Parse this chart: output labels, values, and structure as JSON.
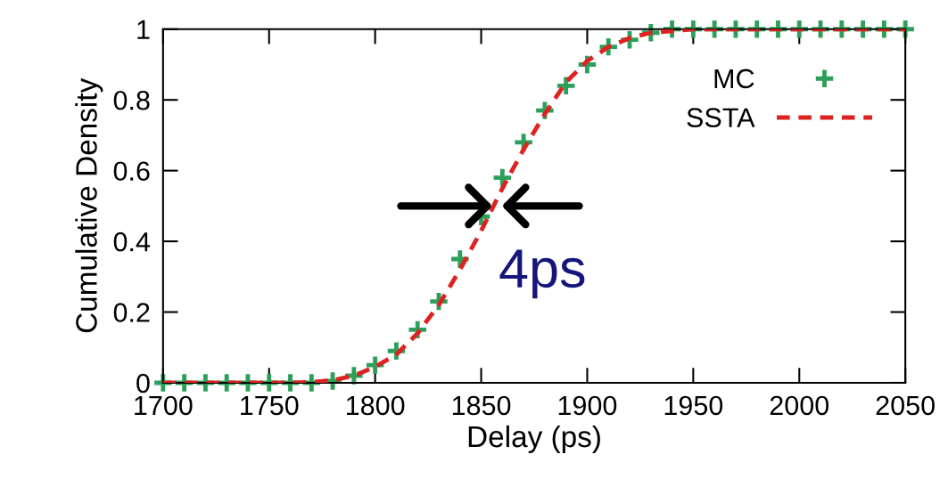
{
  "chart_data": {
    "type": "line",
    "xlabel": "Delay (ps)",
    "ylabel": "Cumulative Density",
    "x": [
      1700,
      1710,
      1720,
      1730,
      1740,
      1750,
      1760,
      1770,
      1780,
      1790,
      1800,
      1810,
      1820,
      1830,
      1840,
      1850,
      1860,
      1870,
      1880,
      1890,
      1900,
      1910,
      1920,
      1930,
      1940,
      1950,
      1960,
      1970,
      1980,
      1990,
      2000,
      2010,
      2020,
      2030,
      2040,
      2050
    ],
    "series": [
      {
        "name": "MC",
        "type": "scatter",
        "marker": "cross",
        "color": "#2ca05a",
        "values": [
          0,
          0,
          0,
          0,
          0,
          0,
          0,
          0,
          0.005,
          0.02,
          0.05,
          0.09,
          0.15,
          0.23,
          0.35,
          0.47,
          0.58,
          0.68,
          0.77,
          0.84,
          0.9,
          0.95,
          0.97,
          0.99,
          1,
          1,
          1,
          1,
          1,
          1,
          1,
          1,
          1,
          1,
          1,
          1
        ]
      },
      {
        "name": "SSTA",
        "line_style": "dashed",
        "color": "#dd2222",
        "values": [
          0,
          0,
          0,
          0,
          0,
          0,
          0,
          0.002,
          0.007,
          0.02,
          0.045,
          0.08,
          0.14,
          0.22,
          0.32,
          0.43,
          0.55,
          0.66,
          0.76,
          0.85,
          0.91,
          0.95,
          0.975,
          0.99,
          0.995,
          1,
          1,
          1,
          1,
          1,
          1,
          1,
          1,
          1,
          1,
          1
        ]
      }
    ],
    "xlim": [
      1700,
      2050
    ],
    "xticks": [
      1700,
      1750,
      1800,
      1850,
      1900,
      1950,
      2000,
      2050
    ],
    "ylim": [
      0,
      1
    ],
    "yticks": [
      0,
      0.2,
      0.4,
      0.6,
      0.8,
      1
    ],
    "annotations": [
      "4ps"
    ],
    "grid": false,
    "legend": "top right"
  }
}
